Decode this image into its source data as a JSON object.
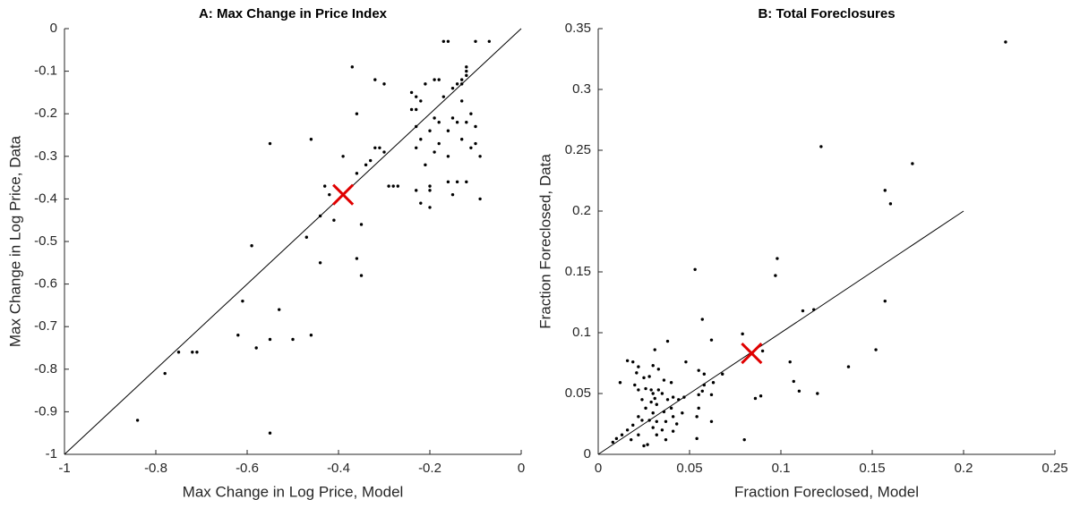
{
  "chart_data": [
    {
      "type": "scatter",
      "title": "A: Max Change in Price Index",
      "xlabel": "Max Change in Log Price, Model",
      "ylabel": "Max Change in Log Price, Data",
      "xlim": [
        -1,
        0
      ],
      "ylim": [
        -1,
        0
      ],
      "xticks": [
        -1,
        -0.8,
        -0.6,
        -0.4,
        -0.2,
        0
      ],
      "yticks": [
        -1,
        -0.9,
        -0.8,
        -0.7,
        -0.6,
        -0.5,
        -0.4,
        -0.3,
        -0.2,
        -0.1,
        0
      ],
      "diagonal": {
        "x": [
          -1,
          0
        ],
        "y": [
          -1,
          0
        ],
        "color": "#000000"
      },
      "series": [
        {
          "color": "#000000",
          "marker": "dot",
          "x": [
            -0.07,
            -0.17,
            -0.16,
            -0.1,
            -0.37,
            -0.12,
            -0.12,
            -0.12,
            -0.32,
            -0.3,
            -0.19,
            -0.18,
            -0.13,
            -0.15,
            -0.14,
            -0.13,
            -0.24,
            -0.23,
            -0.21,
            -0.17,
            -0.22,
            -0.13,
            -0.24,
            -0.23,
            -0.11,
            -0.36,
            -0.19,
            -0.15,
            -0.14,
            -0.18,
            -0.12,
            -0.1,
            -0.23,
            -0.2,
            -0.16,
            -0.22,
            -0.13,
            -0.55,
            -0.46,
            -0.18,
            -0.1,
            -0.23,
            -0.32,
            -0.31,
            -0.11,
            -0.3,
            -0.19,
            -0.39,
            -0.33,
            -0.09,
            -0.16,
            -0.34,
            -0.21,
            -0.36,
            -0.29,
            -0.28,
            -0.27,
            -0.16,
            -0.14,
            -0.12,
            -0.2,
            -0.2,
            -0.23,
            -0.15,
            -0.42,
            -0.43,
            -0.09,
            -0.22,
            -0.2,
            -0.44,
            -0.41,
            -0.35,
            -0.47,
            -0.59,
            -0.36,
            -0.44,
            -0.35,
            -0.61,
            -0.53,
            -0.62,
            -0.46,
            -0.5,
            -0.55,
            -0.58,
            -0.71,
            -0.72,
            -0.75,
            -0.78,
            -0.84,
            -0.55
          ],
          "values": [
            -0.03,
            -0.03,
            -0.03,
            -0.03,
            -0.09,
            -0.09,
            -0.1,
            -0.11,
            -0.12,
            -0.13,
            -0.12,
            -0.12,
            -0.12,
            -0.14,
            -0.13,
            -0.13,
            -0.15,
            -0.16,
            -0.13,
            -0.16,
            -0.17,
            -0.17,
            -0.19,
            -0.19,
            -0.2,
            -0.2,
            -0.21,
            -0.21,
            -0.22,
            -0.22,
            -0.22,
            -0.23,
            -0.23,
            -0.24,
            -0.24,
            -0.26,
            -0.26,
            -0.27,
            -0.26,
            -0.27,
            -0.27,
            -0.28,
            -0.28,
            -0.28,
            -0.28,
            -0.29,
            -0.29,
            -0.3,
            -0.31,
            -0.3,
            -0.3,
            -0.32,
            -0.32,
            -0.34,
            -0.37,
            -0.37,
            -0.37,
            -0.36,
            -0.36,
            -0.36,
            -0.37,
            -0.38,
            -0.38,
            -0.39,
            -0.39,
            -0.37,
            -0.4,
            -0.41,
            -0.42,
            -0.44,
            -0.45,
            -0.46,
            -0.49,
            -0.51,
            -0.54,
            -0.55,
            -0.58,
            -0.64,
            -0.66,
            -0.72,
            -0.72,
            -0.73,
            -0.73,
            -0.75,
            -0.76,
            -0.76,
            -0.76,
            -0.81,
            -0.92,
            -0.95
          ]
        },
        {
          "color": "#e00000",
          "marker": "x",
          "x": [
            -0.39
          ],
          "values": [
            -0.39
          ]
        }
      ]
    },
    {
      "type": "scatter",
      "title": "B: Total Foreclosures",
      "xlabel": "Fraction Foreclosed, Model",
      "ylabel": "Fraction Foreclosed, Data",
      "xlim": [
        0,
        0.25
      ],
      "ylim": [
        0,
        0.35
      ],
      "xticks": [
        0,
        0.05,
        0.1,
        0.15,
        0.2,
        0.25
      ],
      "yticks": [
        0,
        0.05,
        0.1,
        0.15,
        0.2,
        0.25,
        0.3,
        0.35
      ],
      "diagonal": {
        "x": [
          0,
          0.2
        ],
        "y": [
          0,
          0.2
        ],
        "color": "#000000"
      },
      "series": [
        {
          "color": "#000000",
          "marker": "dot",
          "x": [
            0.223,
            0.122,
            0.172,
            0.157,
            0.16,
            0.098,
            0.053,
            0.097,
            0.157,
            0.112,
            0.118,
            0.057,
            0.079,
            0.062,
            0.038,
            0.09,
            0.031,
            0.152,
            0.048,
            0.016,
            0.019,
            0.022,
            0.03,
            0.021,
            0.105,
            0.033,
            0.055,
            0.058,
            0.068,
            0.137,
            0.025,
            0.028,
            0.036,
            0.012,
            0.04,
            0.107,
            0.02,
            0.058,
            0.063,
            0.022,
            0.026,
            0.029,
            0.033,
            0.057,
            0.11,
            0.03,
            0.035,
            0.041,
            0.047,
            0.055,
            0.062,
            0.089,
            0.12,
            0.086,
            0.024,
            0.031,
            0.038,
            0.044,
            0.029,
            0.032,
            0.026,
            0.04,
            0.055,
            0.036,
            0.03,
            0.046,
            0.022,
            0.041,
            0.054,
            0.024,
            0.028,
            0.032,
            0.037,
            0.043,
            0.062,
            0.019,
            0.03,
            0.035,
            0.016,
            0.041,
            0.013,
            0.022,
            0.032,
            0.054,
            0.01,
            0.018,
            0.037,
            0.08,
            0.008,
            0.027,
            0.025
          ],
          "values": [
            0.339,
            0.253,
            0.239,
            0.217,
            0.206,
            0.161,
            0.152,
            0.147,
            0.126,
            0.118,
            0.119,
            0.111,
            0.099,
            0.094,
            0.093,
            0.085,
            0.086,
            0.086,
            0.076,
            0.077,
            0.076,
            0.072,
            0.073,
            0.067,
            0.076,
            0.07,
            0.069,
            0.066,
            0.066,
            0.072,
            0.063,
            0.064,
            0.061,
            0.059,
            0.059,
            0.06,
            0.057,
            0.057,
            0.059,
            0.053,
            0.054,
            0.053,
            0.053,
            0.052,
            0.052,
            0.05,
            0.05,
            0.047,
            0.047,
            0.049,
            0.049,
            0.048,
            0.05,
            0.046,
            0.045,
            0.046,
            0.045,
            0.045,
            0.043,
            0.041,
            0.038,
            0.038,
            0.038,
            0.035,
            0.034,
            0.034,
            0.031,
            0.031,
            0.031,
            0.028,
            0.028,
            0.027,
            0.027,
            0.025,
            0.027,
            0.024,
            0.022,
            0.02,
            0.02,
            0.019,
            0.016,
            0.016,
            0.016,
            0.013,
            0.013,
            0.012,
            0.012,
            0.012,
            0.01,
            0.008,
            0.007
          ]
        },
        {
          "color": "#e00000",
          "marker": "x",
          "x": [
            0.084
          ],
          "values": [
            0.083
          ]
        }
      ]
    }
  ]
}
